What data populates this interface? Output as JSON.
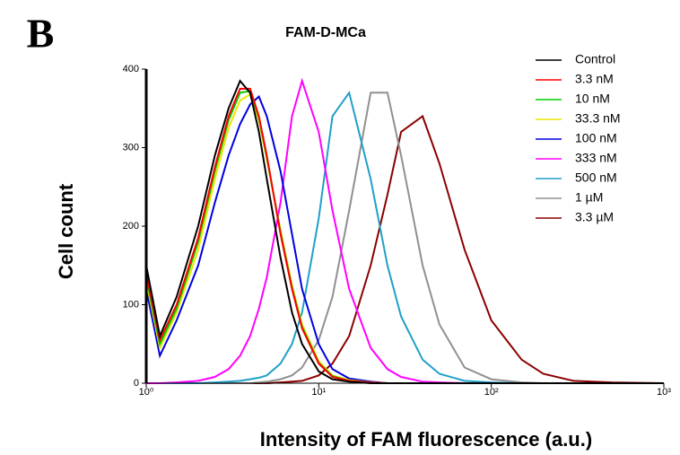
{
  "panel_label": "B",
  "chart_data": {
    "type": "line",
    "title": "FAM-D-MCa",
    "x_label": "Intensity of FAM fluorescence (a.u.)",
    "y_label": "Cell count",
    "x_scale": "log",
    "xlim": [
      1,
      1000
    ],
    "ylim": [
      0,
      400
    ],
    "xticks": [
      {
        "value": 1,
        "label": "10⁰"
      },
      {
        "value": 10,
        "label": "10¹"
      },
      {
        "value": 100,
        "label": "10²"
      },
      {
        "value": 1000,
        "label": "10³"
      }
    ],
    "yticks": [
      0,
      100,
      200,
      300,
      400
    ],
    "legend": "upper-right",
    "x": [
      1,
      1.2,
      1.5,
      2,
      2.5,
      3,
      3.5,
      4,
      4.5,
      5,
      6,
      7,
      8,
      10,
      12,
      15,
      20,
      25,
      30,
      40,
      50,
      70,
      100,
      150,
      200,
      300,
      500,
      1000
    ],
    "series": [
      {
        "name": "Control",
        "color": "#000000",
        "values": [
          150,
          60,
          110,
          200,
          290,
          350,
          385,
          370,
          320,
          260,
          160,
          90,
          50,
          15,
          5,
          2,
          0,
          0,
          0,
          0,
          0,
          0,
          0,
          0,
          0,
          0,
          0,
          0
        ]
      },
      {
        "name": "3.3 nM",
        "color": "#ff0000",
        "values": [
          140,
          55,
          100,
          185,
          275,
          340,
          375,
          375,
          340,
          290,
          190,
          120,
          70,
          25,
          8,
          3,
          1,
          0,
          0,
          0,
          0,
          0,
          0,
          0,
          0,
          0,
          0,
          0
        ]
      },
      {
        "name": "10 nM",
        "color": "#00cc00",
        "values": [
          135,
          50,
          95,
          180,
          270,
          335,
          370,
          372,
          338,
          288,
          192,
          122,
          72,
          26,
          9,
          3,
          1,
          0,
          0,
          0,
          0,
          0,
          0,
          0,
          0,
          0,
          0,
          0
        ]
      },
      {
        "name": "33.3 nM",
        "color": "#e8e800",
        "values": [
          130,
          45,
          90,
          170,
          260,
          325,
          360,
          368,
          335,
          285,
          195,
          125,
          75,
          28,
          10,
          4,
          1,
          0,
          0,
          0,
          0,
          0,
          0,
          0,
          0,
          0,
          0,
          0
        ]
      },
      {
        "name": "100 nM",
        "color": "#0000e0",
        "values": [
          120,
          35,
          80,
          150,
          230,
          290,
          330,
          355,
          365,
          340,
          270,
          190,
          120,
          50,
          18,
          6,
          2,
          0,
          0,
          0,
          0,
          0,
          0,
          0,
          0,
          0,
          0,
          0
        ]
      },
      {
        "name": "333 nM",
        "color": "#ff00ff",
        "values": [
          0,
          0,
          1,
          3,
          8,
          18,
          35,
          60,
          95,
          135,
          230,
          340,
          385,
          320,
          220,
          120,
          45,
          18,
          8,
          2,
          1,
          0,
          0,
          0,
          0,
          0,
          0,
          0
        ]
      },
      {
        "name": "500 nM",
        "color": "#1fa0c8",
        "values": [
          0,
          0,
          0,
          0,
          1,
          2,
          3,
          5,
          7,
          10,
          25,
          50,
          90,
          210,
          340,
          370,
          260,
          150,
          85,
          30,
          12,
          3,
          1,
          0,
          0,
          0,
          0,
          0
        ]
      },
      {
        "name": "1 µM",
        "color": "#909090",
        "values": [
          0,
          0,
          0,
          0,
          0,
          0,
          0,
          0,
          1,
          2,
          5,
          10,
          20,
          55,
          110,
          220,
          370,
          370,
          290,
          150,
          75,
          20,
          5,
          1,
          0,
          0,
          0,
          0
        ]
      },
      {
        "name": "3.3 µM",
        "color": "#8b0000",
        "values": [
          0,
          0,
          0,
          0,
          0,
          0,
          0,
          0,
          0,
          0,
          1,
          2,
          3,
          10,
          25,
          60,
          150,
          240,
          320,
          340,
          280,
          170,
          80,
          30,
          12,
          3,
          1,
          0
        ]
      }
    ]
  }
}
